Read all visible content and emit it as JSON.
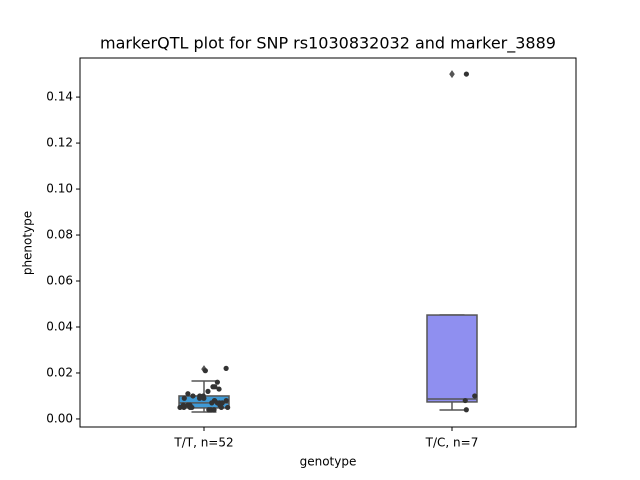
{
  "chart_data": {
    "type": "box",
    "title": "markerQTL plot for SNP rs1030832032 and marker_3889",
    "x_label": "genotype",
    "y_label": "phenotype",
    "categories": [
      "T/T, n=52",
      "T/C, n=7"
    ],
    "colors": [
      "#3f9ad6",
      "#8f8ff0"
    ],
    "boxes": [
      {
        "whislo": 0.003,
        "q1": 0.0048,
        "median": 0.007,
        "q3": 0.01,
        "whishi": 0.0165,
        "outliers": [
          0.0217
        ]
      },
      {
        "whislo": 0.0039,
        "q1": 0.0074,
        "median": 0.0087,
        "q3": 0.0452,
        "whishi": 0.0452,
        "outliers": [
          0.15
        ]
      }
    ],
    "points": [
      [
        0.022,
        0.021,
        0.016,
        0.014,
        0.014,
        0.013,
        0.012,
        0.011,
        0.01,
        0.01,
        0.01,
        0.009,
        0.009,
        0.009,
        0.008,
        0.008,
        0.008,
        0.007,
        0.007,
        0.007,
        0.007,
        0.006,
        0.006,
        0.006,
        0.006,
        0.005,
        0.005,
        0.005,
        0.005,
        0.005,
        0.005,
        0.004,
        0.004,
        0.004
      ],
      [
        0.15,
        0.01,
        0.008,
        0.004
      ]
    ],
    "ylim": [
      -0.0035,
      0.157
    ],
    "yticks": [
      {
        "value": 0,
        "label": "0.00"
      },
      0.02,
      0.04,
      0.06,
      0.08,
      {
        "value": 0.1,
        "label": "0.10"
      },
      0.12,
      0.14
    ]
  }
}
